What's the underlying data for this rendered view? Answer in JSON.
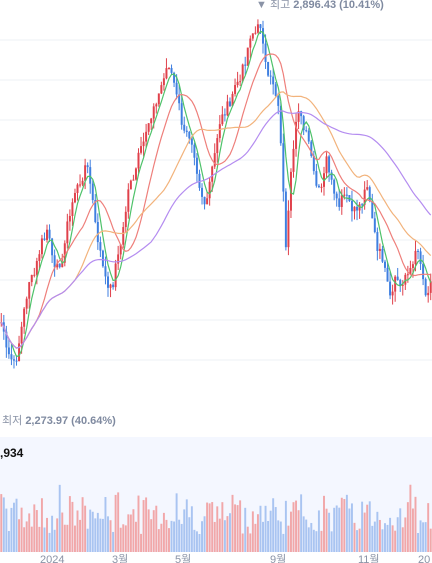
{
  "annotations": {
    "high_prefix": "▼ 최고",
    "high_value": "2,896.43 (10.41%)",
    "low_prefix": "최저",
    "low_value": "2,273.97 (40.64%)",
    "volume_label": ",934"
  },
  "colors": {
    "up": "#e0414b",
    "down": "#3f7fe0",
    "ma_short": "#4ec26a",
    "ma_mid": "#ee7f7b",
    "ma_long": "#f2b37c",
    "ma_xlong": "#b48cf0",
    "vol_up": "#f1a7a9",
    "vol_down": "#a9c4f1",
    "vol_bg": "#f4f7ff",
    "grid": "#eef0f4"
  },
  "chart_data": {
    "type": "candlestick",
    "x_tick_labels": [
      "2024",
      "3월",
      "5월",
      "9월",
      "11월",
      "20"
    ],
    "price_range": [
      2250,
      2910
    ],
    "high_marker": 2896.43,
    "low_marker": 2273.97,
    "close_series": [
      2370,
      2330,
      2300,
      2320,
      2400,
      2440,
      2470,
      2510,
      2530,
      2480,
      2450,
      2510,
      2570,
      2600,
      2620,
      2640,
      2560,
      2490,
      2450,
      2420,
      2480,
      2530,
      2600,
      2630,
      2680,
      2700,
      2720,
      2760,
      2790,
      2810,
      2780,
      2720,
      2690,
      2660,
      2600,
      2570,
      2620,
      2680,
      2720,
      2740,
      2770,
      2790,
      2810,
      2860,
      2880,
      2860,
      2800,
      2770,
      2720,
      2500,
      2650,
      2730,
      2710,
      2690,
      2620,
      2600,
      2650,
      2620,
      2570,
      2600,
      2580,
      2560,
      2570,
      2600,
      2550,
      2490,
      2480,
      2420,
      2450,
      2430,
      2450,
      2480,
      2490,
      2410,
      2430
    ],
    "x_labels_full": [],
    "series": [
      {
        "name": "",
        "kind": "ma_short"
      },
      {
        "name": "",
        "kind": "ma_mid"
      },
      {
        "name": "",
        "kind": "ma_long"
      },
      {
        "name": "",
        "kind": "ma_xlong"
      }
    ]
  }
}
